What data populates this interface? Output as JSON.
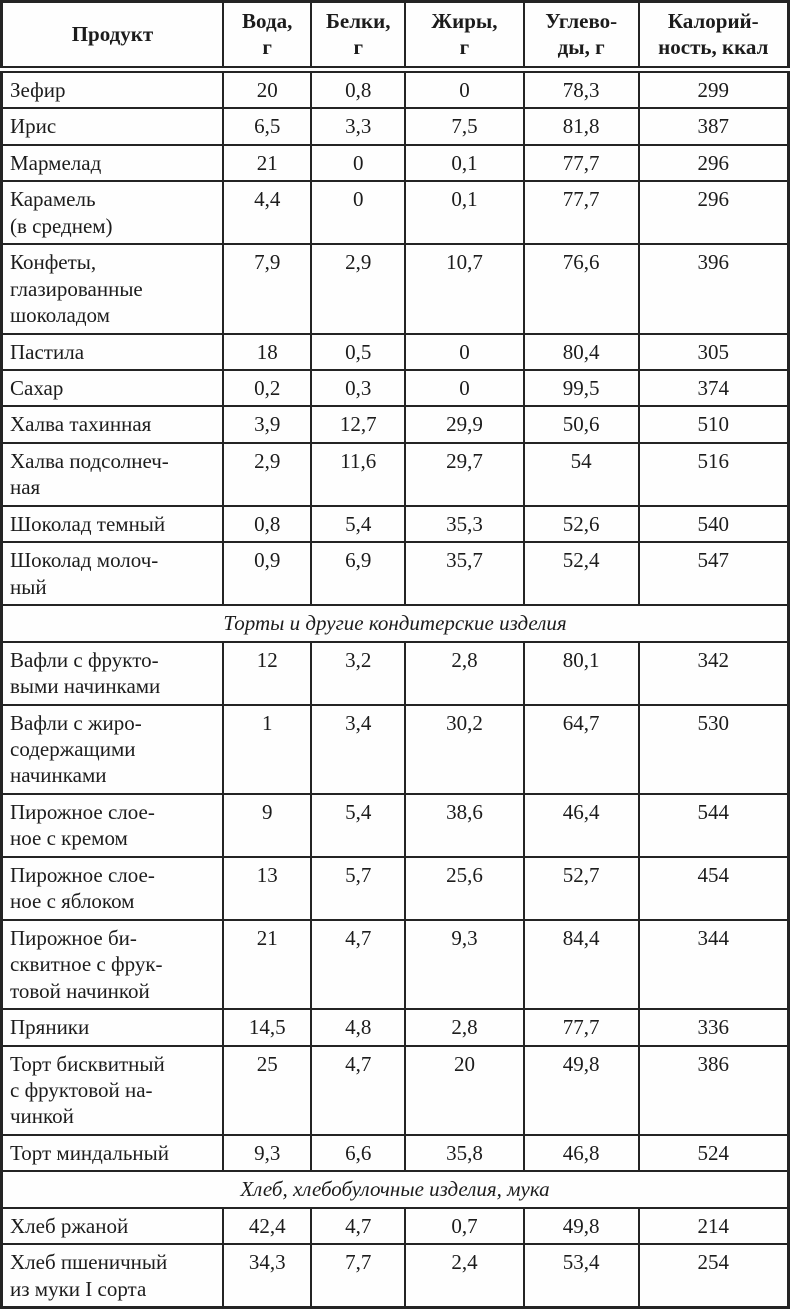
{
  "table": {
    "columns": [
      "Продукт",
      "Вода,\nг",
      "Белки,\nг",
      "Жиры,\nг",
      "Углево-\nды, г",
      "Калорий-\nность, ккал"
    ],
    "rows": [
      {
        "type": "item",
        "name": "Зефир",
        "values": [
          "20",
          "0,8",
          "0",
          "78,3",
          "299"
        ]
      },
      {
        "type": "item",
        "name": "Ирис",
        "values": [
          "6,5",
          "3,3",
          "7,5",
          "81,8",
          "387"
        ]
      },
      {
        "type": "item",
        "name": "Мармелад",
        "values": [
          "21",
          "0",
          "0,1",
          "77,7",
          "296"
        ]
      },
      {
        "type": "item",
        "name": "Карамель\n(в среднем)",
        "values": [
          "4,4",
          "0",
          "0,1",
          "77,7",
          "296"
        ]
      },
      {
        "type": "item",
        "name": "Конфеты,\nглазированные\nшоколадом",
        "values": [
          "7,9",
          "2,9",
          "10,7",
          "76,6",
          "396"
        ]
      },
      {
        "type": "item",
        "name": "Пастила",
        "values": [
          "18",
          "0,5",
          "0",
          "80,4",
          "305"
        ]
      },
      {
        "type": "item",
        "name": "Сахар",
        "values": [
          "0,2",
          "0,3",
          "0",
          "99,5",
          "374"
        ]
      },
      {
        "type": "item",
        "name": "Халва тахинная",
        "values": [
          "3,9",
          "12,7",
          "29,9",
          "50,6",
          "510"
        ]
      },
      {
        "type": "item",
        "name": "Халва подсолнеч-\nная",
        "values": [
          "2,9",
          "11,6",
          "29,7",
          "54",
          "516"
        ]
      },
      {
        "type": "item",
        "name": "Шоколад темный",
        "values": [
          "0,8",
          "5,4",
          "35,3",
          "52,6",
          "540"
        ]
      },
      {
        "type": "item",
        "name": "Шоколад молоч-\nный",
        "values": [
          "0,9",
          "6,9",
          "35,7",
          "52,4",
          "547"
        ]
      },
      {
        "type": "section",
        "title": "Торты и другие кондитерские изделия"
      },
      {
        "type": "item",
        "name": "Вафли с фрукто-\nвыми начинками",
        "values": [
          "12",
          "3,2",
          "2,8",
          "80,1",
          "342"
        ]
      },
      {
        "type": "item",
        "name": "Вафли с жиро-\nсодержащими\nначинками",
        "values": [
          "1",
          "3,4",
          "30,2",
          "64,7",
          "530"
        ]
      },
      {
        "type": "item",
        "name": "Пирожное слое-\nное с кремом",
        "values": [
          "9",
          "5,4",
          "38,6",
          "46,4",
          "544"
        ]
      },
      {
        "type": "item",
        "name": "Пирожное слое-\nное с яблоком",
        "values": [
          "13",
          "5,7",
          "25,6",
          "52,7",
          "454"
        ]
      },
      {
        "type": "item",
        "name": "Пирожное би-\nсквитное с фрук-\nтовой начинкой",
        "values": [
          "21",
          "4,7",
          "9,3",
          "84,4",
          "344"
        ]
      },
      {
        "type": "item",
        "name": "Пряники",
        "values": [
          "14,5",
          "4,8",
          "2,8",
          "77,7",
          "336"
        ]
      },
      {
        "type": "item",
        "name": "Торт бисквитный\nс фруктовой на-\nчинкой",
        "values": [
          "25",
          "4,7",
          "20",
          "49,8",
          "386"
        ]
      },
      {
        "type": "item",
        "name": "Торт миндальный",
        "values": [
          "9,3",
          "6,6",
          "35,8",
          "46,8",
          "524"
        ]
      },
      {
        "type": "section",
        "title": "Хлеб, хлебобулочные изделия, мука"
      },
      {
        "type": "item",
        "name": "Хлеб ржаной",
        "values": [
          "42,4",
          "4,7",
          "0,7",
          "49,8",
          "214"
        ]
      },
      {
        "type": "item",
        "name": "Хлеб пшеничный\nиз муки I сорта",
        "values": [
          "34,3",
          "7,7",
          "2,4",
          "53,4",
          "254"
        ]
      }
    ]
  }
}
